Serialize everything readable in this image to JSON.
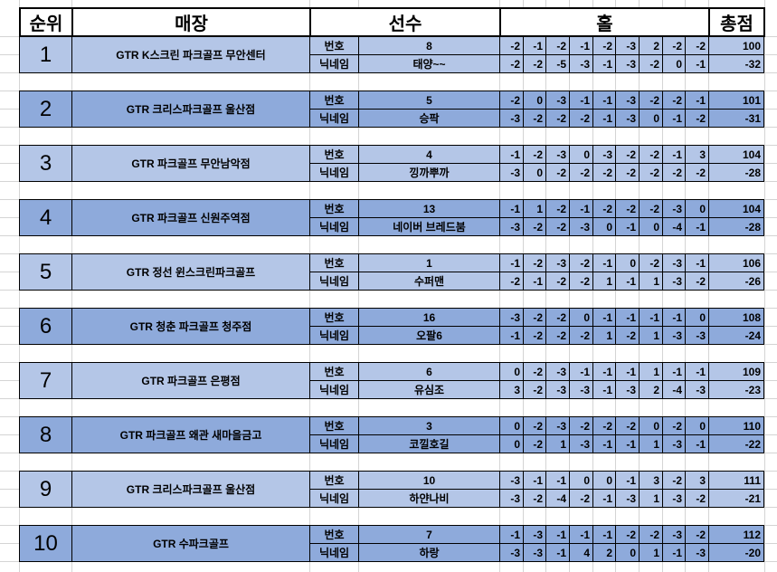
{
  "header": {
    "rank": "순위",
    "store": "매장",
    "player": "선수",
    "holes": "홀",
    "total": "총점"
  },
  "row_labels": {
    "number": "번호",
    "nickname": "닉네임"
  },
  "colors": {
    "light": "#b4c6e7",
    "dark": "#8eaadb"
  },
  "entries": [
    {
      "rank": "1",
      "store": "GTR K스크린 파크골프 무안센터",
      "number": "8",
      "nickname": "태양~~",
      "holes_row1": [
        "-2",
        "-1",
        "-2",
        "-1",
        "-2",
        "-3",
        "2",
        "-2",
        "-2"
      ],
      "holes_row2": [
        "-2",
        "-2",
        "-5",
        "-3",
        "-1",
        "-3",
        "-2",
        "0",
        "-1"
      ],
      "total": "100",
      "total_diff": "-32"
    },
    {
      "rank": "2",
      "store": "GTR 크리스파크골프 울산점",
      "number": "5",
      "nickname": "승팍",
      "holes_row1": [
        "-2",
        "0",
        "-3",
        "-1",
        "-1",
        "-3",
        "-2",
        "-2",
        "-1"
      ],
      "holes_row2": [
        "-3",
        "-2",
        "-2",
        "-2",
        "-1",
        "-3",
        "0",
        "-1",
        "-2"
      ],
      "total": "101",
      "total_diff": "-31"
    },
    {
      "rank": "3",
      "store": "GTR 파크골프 무안남악점",
      "number": "4",
      "nickname": "낑까뿌까",
      "holes_row1": [
        "-1",
        "-2",
        "-3",
        "0",
        "-3",
        "-2",
        "-2",
        "-1",
        "3"
      ],
      "holes_row2": [
        "-3",
        "0",
        "-2",
        "-2",
        "-2",
        "-2",
        "-2",
        "-2",
        "-2"
      ],
      "total": "104",
      "total_diff": "-28"
    },
    {
      "rank": "4",
      "store": "GTR 파크골프 신원주역점",
      "number": "13",
      "nickname": "네이버 브레드붐",
      "holes_row1": [
        "-1",
        "1",
        "-2",
        "-1",
        "-2",
        "-2",
        "-2",
        "-3",
        "0"
      ],
      "holes_row2": [
        "-3",
        "-2",
        "-2",
        "-3",
        "0",
        "-1",
        "0",
        "-4",
        "-1"
      ],
      "total": "104",
      "total_diff": "-28"
    },
    {
      "rank": "5",
      "store": "GTR 정선 윈스크린파크골프",
      "number": "1",
      "nickname": "수퍼맨",
      "holes_row1": [
        "-1",
        "-2",
        "-3",
        "-2",
        "-1",
        "0",
        "-2",
        "-3",
        "-1"
      ],
      "holes_row2": [
        "-2",
        "-1",
        "-2",
        "-2",
        "1",
        "-1",
        "1",
        "-3",
        "-2"
      ],
      "total": "106",
      "total_diff": "-26"
    },
    {
      "rank": "6",
      "store": "GTR 청춘 파크골프 청주점",
      "number": "16",
      "nickname": "오팔6",
      "holes_row1": [
        "-3",
        "-2",
        "-2",
        "0",
        "-1",
        "-1",
        "-1",
        "-1",
        "0"
      ],
      "holes_row2": [
        "-1",
        "-2",
        "-2",
        "-2",
        "1",
        "-2",
        "1",
        "-3",
        "-3"
      ],
      "total": "108",
      "total_diff": "-24"
    },
    {
      "rank": "7",
      "store": "GTR 파크골프 은평점",
      "number": "6",
      "nickname": "유심조",
      "holes_row1": [
        "0",
        "-2",
        "-3",
        "-1",
        "-1",
        "-1",
        "1",
        "-1",
        "-1"
      ],
      "holes_row2": [
        "3",
        "-2",
        "-3",
        "-3",
        "-1",
        "-3",
        "2",
        "-4",
        "-3"
      ],
      "total": "109",
      "total_diff": "-23"
    },
    {
      "rank": "8",
      "store": "GTR 파크골프 왜관 새마을금고",
      "number": "3",
      "nickname": "코낄호길",
      "holes_row1": [
        "0",
        "-2",
        "-3",
        "-2",
        "-2",
        "-2",
        "0",
        "-2",
        "0"
      ],
      "holes_row2": [
        "0",
        "-2",
        "1",
        "-3",
        "-1",
        "-1",
        "1",
        "-3",
        "-1"
      ],
      "total": "110",
      "total_diff": "-22"
    },
    {
      "rank": "9",
      "store": "GTR 크리스파크골프 울산점",
      "number": "10",
      "nickname": "하얀나비",
      "holes_row1": [
        "-3",
        "-1",
        "-1",
        "0",
        "0",
        "-1",
        "3",
        "-2",
        "3"
      ],
      "holes_row2": [
        "-3",
        "-2",
        "-4",
        "-2",
        "-1",
        "-3",
        "1",
        "-3",
        "-2"
      ],
      "total": "111",
      "total_diff": "-21"
    },
    {
      "rank": "10",
      "store": "GTR 수파크골프",
      "number": "7",
      "nickname": "하랑",
      "holes_row1": [
        "-1",
        "-3",
        "-1",
        "-1",
        "-1",
        "-2",
        "-2",
        "-3",
        "-2"
      ],
      "holes_row2": [
        "-3",
        "-3",
        "-1",
        "4",
        "2",
        "0",
        "1",
        "-1",
        "-3"
      ],
      "total": "112",
      "total_diff": "-20"
    }
  ]
}
